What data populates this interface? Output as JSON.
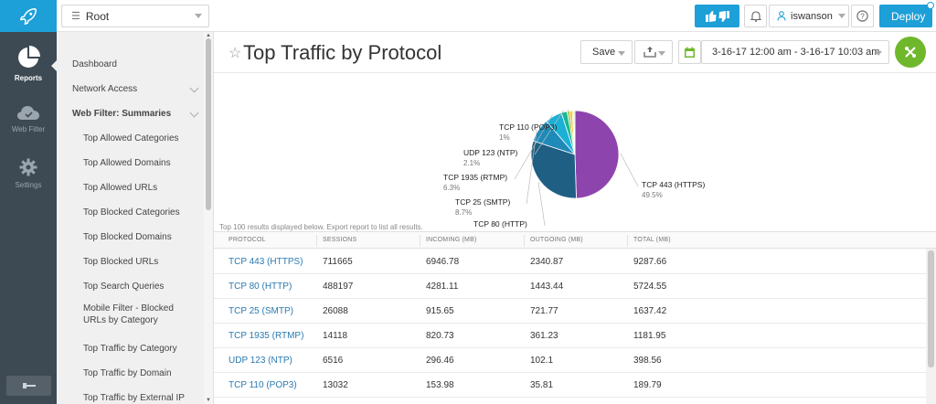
{
  "topbar": {
    "root_label": "Root",
    "username": "iswanson",
    "deploy_label": "Deploy",
    "accent": "#1d9fd8"
  },
  "rail": [
    {
      "label": "Reports",
      "icon": "pie-chart-icon",
      "active": true
    },
    {
      "label": "Web Filter",
      "icon": "cloud-icon",
      "active": false
    },
    {
      "label": "Settings",
      "icon": "gear-icon",
      "active": false
    }
  ],
  "sidebar": {
    "items": [
      {
        "label": "Dashboard",
        "level": 1
      },
      {
        "label": "Network Access",
        "level": 1,
        "chevron": true
      },
      {
        "label": "Web Filter: Summaries",
        "level": 1,
        "bold": true,
        "chevron": true
      },
      {
        "label": "Top Allowed Categories",
        "level": 2
      },
      {
        "label": "Top Allowed Domains",
        "level": 2
      },
      {
        "label": "Top Allowed URLs",
        "level": 2
      },
      {
        "label": "Top Blocked Categories",
        "level": 2
      },
      {
        "label": "Top Blocked Domains",
        "level": 2
      },
      {
        "label": "Top Blocked URLs",
        "level": 2
      },
      {
        "label": "Top Search Queries",
        "level": 2
      },
      {
        "label": "Mobile Filter - Blocked URLs by Category",
        "level": 2
      },
      {
        "label": "Top Traffic by Category",
        "level": 2
      },
      {
        "label": "Top Traffic by Domain",
        "level": 2
      },
      {
        "label": "Top Traffic by External IP",
        "level": 2
      }
    ]
  },
  "header": {
    "title": "Top Traffic by Protocol",
    "save_label": "Save",
    "date_range": "3-16-17 12:00 am - 3-16-17 10:03 am"
  },
  "chart_data": {
    "type": "pie",
    "slices": [
      {
        "label": "TCP 443 (HTTPS)",
        "pct": "49.5%",
        "value": 49.5,
        "color": "#8e44ad"
      },
      {
        "label": "TCP 80 (HTTP)",
        "pct": "30.5%",
        "value": 30.5,
        "color": "#1f5f84"
      },
      {
        "label": "TCP 25 (SMTP)",
        "pct": "8.7%",
        "value": 8.7,
        "color": "#1e8ab8"
      },
      {
        "label": "TCP 1935 (RTMP)",
        "pct": "6.3%",
        "value": 6.3,
        "color": "#1cb0d6"
      },
      {
        "label": "UDP 123 (NTP)",
        "pct": "2.1%",
        "value": 2.1,
        "color": "#17b890"
      },
      {
        "label": "TCP 110 (POP3)",
        "pct": "1%",
        "value": 1.0,
        "color": "#a8c82a"
      },
      {
        "label": "",
        "pct": "",
        "value": 0.9,
        "color": "#e6c619"
      },
      {
        "label": "",
        "pct": "",
        "value": 0.5,
        "color": "#f0e040"
      },
      {
        "label": "",
        "pct": "",
        "value": 0.5,
        "color": "#d8d8d8"
      }
    ]
  },
  "note": "Top 100 results displayed below. Export report to list all results.",
  "table": {
    "columns": [
      "PROTOCOL",
      "SESSIONS",
      "INCOMING (MB)",
      "OUTGOING (MB)",
      "TOTAL (MB)"
    ],
    "rows": [
      [
        "TCP 443 (HTTPS)",
        "711665",
        "6946.78",
        "2340.87",
        "9287.66"
      ],
      [
        "TCP 80 (HTTP)",
        "488197",
        "4281.11",
        "1443.44",
        "5724.55"
      ],
      [
        "TCP 25 (SMTP)",
        "26088",
        "915.65",
        "721.77",
        "1637.42"
      ],
      [
        "TCP 1935 (RTMP)",
        "14118",
        "820.73",
        "361.23",
        "1181.95"
      ],
      [
        "UDP 123 (NTP)",
        "6516",
        "296.46",
        "102.1",
        "398.56"
      ],
      [
        "TCP 110 (POP3)",
        "13032",
        "153.98",
        "35.81",
        "189.79"
      ]
    ]
  }
}
